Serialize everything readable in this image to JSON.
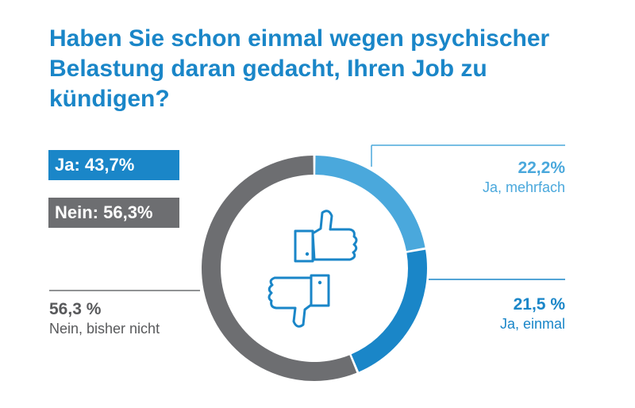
{
  "title": {
    "line1": "Haben Sie schon einmal wegen psychischer",
    "line2": "Belastung daran gedacht, Ihren Job zu",
    "line3": "kündigen?"
  },
  "summary": {
    "ja": "Ja: 43,7%",
    "nein": "Nein: 56,3%"
  },
  "labels": {
    "mehrfach": {
      "value": "22,2%",
      "category": "Ja, mehrfach"
    },
    "einmal": {
      "value": "21,5 %",
      "category": "Ja, einmal"
    },
    "nein": {
      "value": "56,3 %",
      "category": "Nein, bisher nicht"
    }
  },
  "icons": [
    "thumbs-up-icon",
    "thumbs-down-icon"
  ],
  "colors": {
    "ja_mehrfach": "#4aa8dc",
    "ja_einmal": "#1a86c8",
    "nein": "#6d6e71",
    "leader_blue": "#4aa8dc",
    "leader_grey": "#6d6e71"
  },
  "chart_data": {
    "type": "pie",
    "donut": true,
    "title": "Haben Sie schon einmal wegen psychischer Belastung daran gedacht, Ihren Job zu kündigen?",
    "categories": [
      "Ja, mehrfach",
      "Ja, einmal",
      "Nein, bisher nicht"
    ],
    "values": [
      22.2,
      21.5,
      56.3
    ],
    "value_labels": [
      "22,2%",
      "21,5 %",
      "56,3 %"
    ],
    "colors": [
      "#4aa8dc",
      "#1a86c8",
      "#6d6e71"
    ],
    "legend": "none"
  }
}
